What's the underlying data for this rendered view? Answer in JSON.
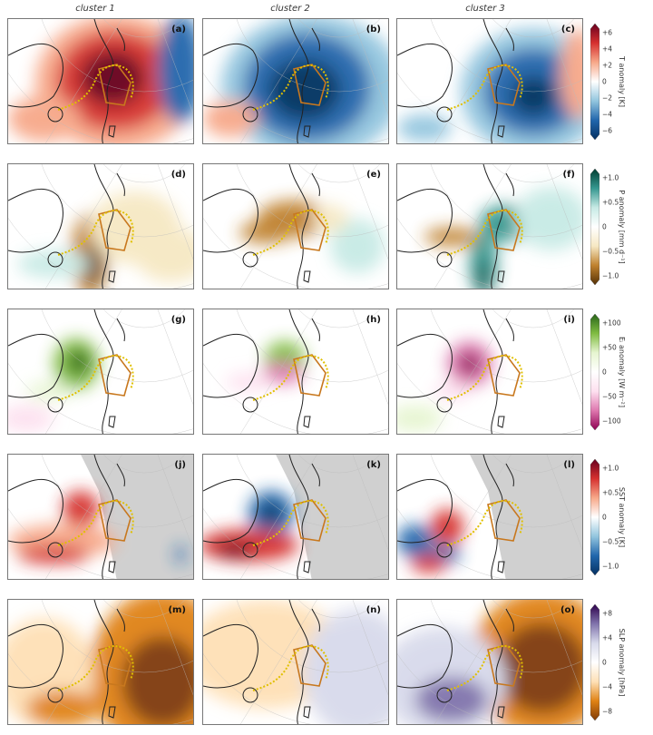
{
  "columns": [
    "cluster 1",
    "cluster 2",
    "cluster 3"
  ],
  "rows": [
    {
      "variable": "T",
      "panel_labels": [
        "(a)",
        "(b)",
        "(c)"
      ],
      "colorbar": {
        "label": "T anomaly [K]",
        "ticks": [
          "+6",
          "+4",
          "+2",
          "0",
          "−2",
          "−4",
          "−6"
        ],
        "colors": [
          "#67001f",
          "#d6302f",
          "#f7a889",
          "#ffffff",
          "#92c5de",
          "#2166ac",
          "#053061"
        ]
      }
    },
    {
      "variable": "P",
      "panel_labels": [
        "(d)",
        "(e)",
        "(f)"
      ],
      "colorbar": {
        "label": "P anomaly [mm d⁻¹]",
        "ticks": [
          "+1.0",
          "+0.5",
          "0",
          "−0.5",
          "−1.0"
        ],
        "colors": [
          "#003c30",
          "#35978f",
          "#c7eae5",
          "#ffffff",
          "#f6e8c3",
          "#bf812d",
          "#543005"
        ]
      }
    },
    {
      "variable": "Ei",
      "panel_labels": [
        "(g)",
        "(h)",
        "(i)"
      ],
      "colorbar": {
        "label": "Eᵢ anomaly [W m⁻²]",
        "ticks": [
          "+100",
          "+50",
          "0",
          "−50",
          "−100"
        ],
        "colors": [
          "#276419",
          "#7fbc41",
          "#e6f5d0",
          "#ffffff",
          "#fde0ef",
          "#de77ae",
          "#8e0152"
        ]
      }
    },
    {
      "variable": "SST",
      "panel_labels": [
        "(j)",
        "(k)",
        "(l)"
      ],
      "colorbar": {
        "label": "SST anomaly [K]",
        "ticks": [
          "+1.0",
          "+0.5",
          "0",
          "−0.5",
          "−1.0"
        ],
        "colors": [
          "#67001f",
          "#d6302f",
          "#f7a889",
          "#ffffff",
          "#92c5de",
          "#2166ac",
          "#053061"
        ]
      }
    },
    {
      "variable": "SLP",
      "panel_labels": [
        "(m)",
        "(n)",
        "(o)"
      ],
      "colorbar": {
        "label": "SLP anomaly [hPa]",
        "ticks": [
          "+8",
          "+4",
          "0",
          "−4",
          "−8"
        ],
        "colors": [
          "#2d004b",
          "#8073ac",
          "#d8daeb",
          "#ffffff",
          "#fee0b6",
          "#e08214",
          "#7f3b08"
        ]
      }
    }
  ],
  "colors": {
    "ice_edge_dotted": "#e0c000",
    "region_outline": "#c8781e",
    "coastline": "#222222",
    "land_mask": "#d0d0d0"
  }
}
